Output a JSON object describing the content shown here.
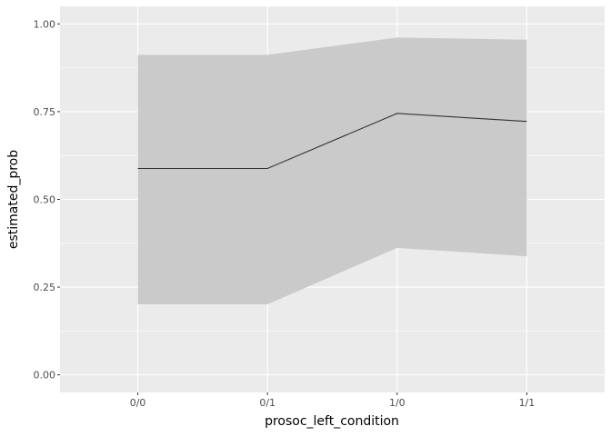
{
  "chart_data": {
    "type": "line",
    "title": "",
    "xlabel": "prosoc_left_condition",
    "ylabel": "estimated_prob",
    "categories": [
      "0/0",
      "0/1",
      "1/0",
      "1/1"
    ],
    "series": [
      {
        "values": [
          0.588,
          0.588,
          0.745,
          0.722
        ],
        "lower": [
          0.201,
          0.201,
          0.362,
          0.338
        ],
        "upper": [
          0.912,
          0.912,
          0.961,
          0.955
        ]
      }
    ],
    "ylim": [
      -0.05,
      1.05
    ],
    "yticks": [
      0.0,
      0.25,
      0.5,
      0.75,
      1.0
    ],
    "ytick_labels": [
      "0.00",
      "0.25",
      "0.50",
      "0.75",
      "1.00"
    ],
    "grid": true,
    "legend": "none",
    "colors": {
      "panel_background": "#ebebeb",
      "grid_major": "#ffffff",
      "ribbon": "#c8c8c8",
      "line": "#333333",
      "tick_mark": "#333333"
    }
  }
}
